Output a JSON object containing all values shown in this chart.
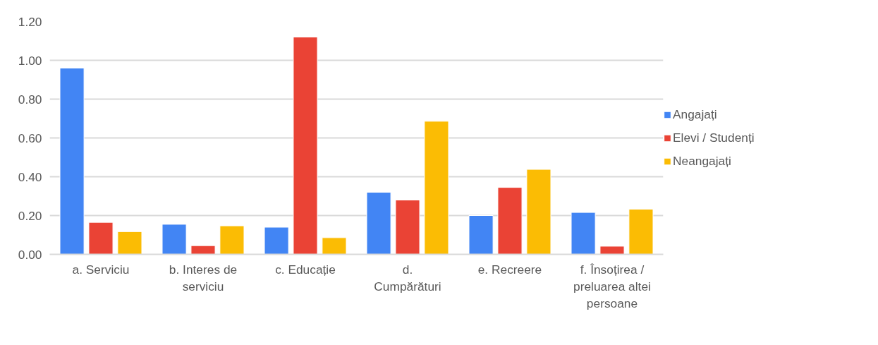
{
  "chart_data": {
    "type": "bar",
    "categories": [
      "a. Serviciu",
      "b. Interes de serviciu",
      "c. Educație",
      "d. Cumpărături",
      "e. Recreere",
      "f. Însoțirea / preluarea altei persoane"
    ],
    "series": [
      {
        "name": "Angajați",
        "color": "#4285f4",
        "values": [
          0.96,
          0.155,
          0.14,
          0.32,
          0.2,
          0.216
        ]
      },
      {
        "name": "Elevi / Studenți",
        "color": "#ea4335",
        "values": [
          0.165,
          0.045,
          1.12,
          0.28,
          0.345,
          0.042
        ]
      },
      {
        "name": "Neangajați",
        "color": "#fbbc04",
        "values": [
          0.117,
          0.147,
          0.086,
          0.686,
          0.438,
          0.233
        ]
      }
    ],
    "ylim": [
      0,
      1.2
    ],
    "yticks": [
      {
        "value": 0,
        "label": "0.00"
      },
      {
        "value": 0.2,
        "label": "0.20"
      },
      {
        "value": 0.4,
        "label": "0.40"
      },
      {
        "value": 0.6,
        "label": "0.60"
      },
      {
        "value": 0.8,
        "label": "0.80"
      },
      {
        "value": 1.0,
        "label": "1.00"
      },
      {
        "value": 1.2,
        "label": "1.20"
      }
    ],
    "grid": "y",
    "legend": "right"
  }
}
